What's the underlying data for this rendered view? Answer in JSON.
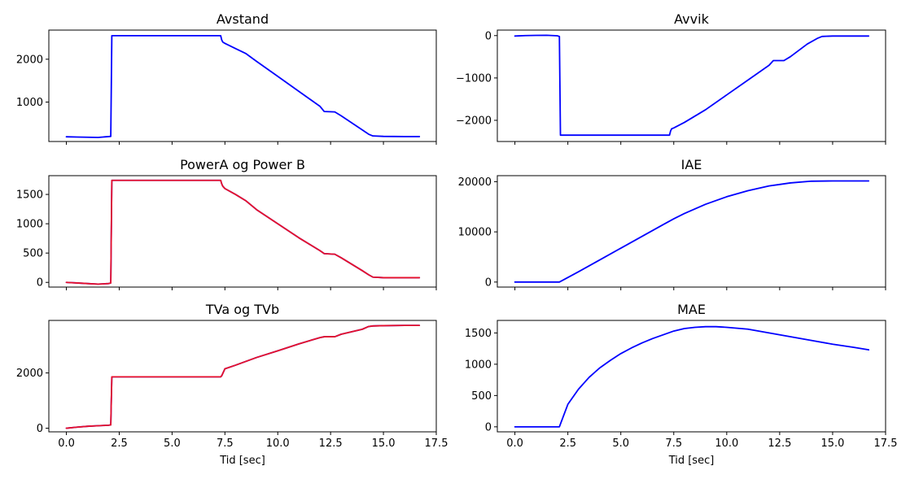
{
  "figure": {
    "title": "",
    "colors": {
      "blue": "#0000ff",
      "red": "#e8102a",
      "axes": "#000000"
    }
  },
  "chart_data": [
    {
      "type": "line",
      "title": "Avstand",
      "xlabel": "",
      "ylabel": "",
      "xlim": [
        -0.83,
        17.5
      ],
      "ylim": [
        80,
        2680
      ],
      "xticks": [
        0,
        2.5,
        5,
        7.5,
        10,
        12.5,
        15,
        17.5
      ],
      "xticklabels": [],
      "yticks": [
        1000,
        2000
      ],
      "yticklabels": [
        "1000",
        "2000"
      ],
      "grid": false,
      "series": [
        {
          "color": "#0000ff",
          "x": [
            0.0,
            0.5,
            1.0,
            1.5,
            2.0,
            2.1,
            2.15,
            2.2,
            3.0,
            5.0,
            7.0,
            7.3,
            7.35,
            7.4,
            7.5,
            8.0,
            8.5,
            9.0,
            10.0,
            11.0,
            12.0,
            12.2,
            12.7,
            13.0,
            14.0,
            14.3,
            14.5,
            15.0,
            16.0,
            16.7
          ],
          "y": [
            190,
            185,
            180,
            175,
            195,
            200,
            2550,
            2550,
            2550,
            2550,
            2550,
            2550,
            2450,
            2400,
            2370,
            2250,
            2130,
            1950,
            1600,
            1250,
            900,
            780,
            770,
            680,
            350,
            250,
            210,
            200,
            195,
            195
          ]
        }
      ]
    },
    {
      "type": "line",
      "title": "Avvik",
      "xlabel": "",
      "ylabel": "",
      "xlim": [
        -0.83,
        17.5
      ],
      "ylim": [
        -2500,
        130
      ],
      "xticks": [
        0,
        2.5,
        5,
        7.5,
        10,
        12.5,
        15,
        17.5
      ],
      "xticklabels": [],
      "yticks": [
        -2000,
        -1000,
        0
      ],
      "yticklabels": [
        "−2000",
        "−1000",
        "0"
      ],
      "grid": false,
      "series": [
        {
          "color": "#0000ff",
          "x": [
            0.0,
            0.5,
            1.0,
            1.5,
            2.0,
            2.1,
            2.15,
            2.2,
            4.0,
            6.0,
            7.3,
            7.35,
            7.4,
            7.5,
            8.0,
            9.0,
            10.0,
            11.0,
            12.0,
            12.2,
            12.7,
            13.0,
            13.8,
            14.3,
            14.5,
            15.0,
            16.0,
            16.7
          ],
          "y": [
            -10,
            0,
            5,
            8,
            -5,
            -20,
            -2350,
            -2350,
            -2350,
            -2350,
            -2350,
            -2250,
            -2200,
            -2180,
            -2050,
            -1750,
            -1400,
            -1050,
            -700,
            -590,
            -590,
            -500,
            -200,
            -60,
            -20,
            -10,
            -10,
            -10
          ]
        }
      ]
    },
    {
      "type": "line",
      "title": "PowerA og Power B",
      "xlabel": "",
      "ylabel": "",
      "xlim": [
        -0.83,
        17.5
      ],
      "ylim": [
        -80,
        1820
      ],
      "xticks": [
        0,
        2.5,
        5,
        7.5,
        10,
        12.5,
        15,
        17.5
      ],
      "xticklabels": [],
      "yticks": [
        0,
        500,
        1000,
        1500
      ],
      "yticklabels": [
        "0",
        "500",
        "1000",
        "1500"
      ],
      "grid": false,
      "series": [
        {
          "color": "#0000ff",
          "x": [
            0.0,
            0.5,
            1.0,
            1.5,
            2.0,
            2.1,
            2.15,
            2.2,
            4.0,
            6.0,
            7.3,
            7.35,
            7.4,
            7.5,
            8.0,
            8.5,
            9.0,
            10.0,
            11.0,
            12.0,
            12.2,
            12.7,
            13.0,
            14.0,
            14.3,
            14.5,
            15.0,
            16.0,
            16.7
          ],
          "y": [
            0,
            -10,
            -20,
            -30,
            -20,
            -10,
            1740,
            1740,
            1740,
            1740,
            1740,
            1680,
            1640,
            1600,
            1500,
            1390,
            1240,
            1000,
            760,
            540,
            490,
            480,
            420,
            200,
            130,
            90,
            80,
            80,
            80
          ]
        },
        {
          "color": "#e8102a",
          "x": [
            0.0,
            0.5,
            1.0,
            1.5,
            2.0,
            2.1,
            2.15,
            2.2,
            4.0,
            6.0,
            7.3,
            7.35,
            7.4,
            7.5,
            8.0,
            8.5,
            9.0,
            10.0,
            11.0,
            12.0,
            12.2,
            12.7,
            13.0,
            14.0,
            14.3,
            14.5,
            15.0,
            16.0,
            16.7
          ],
          "y": [
            0,
            -10,
            -20,
            -30,
            -20,
            -10,
            1740,
            1740,
            1740,
            1740,
            1740,
            1680,
            1640,
            1600,
            1500,
            1390,
            1240,
            1000,
            760,
            540,
            490,
            480,
            420,
            200,
            130,
            90,
            80,
            80,
            80
          ]
        }
      ]
    },
    {
      "type": "line",
      "title": "IAE",
      "xlabel": "",
      "ylabel": "",
      "xlim": [
        -0.83,
        17.5
      ],
      "ylim": [
        -1000,
        21200
      ],
      "xticks": [
        0,
        2.5,
        5,
        7.5,
        10,
        12.5,
        15,
        17.5
      ],
      "xticklabels": [],
      "yticks": [
        0,
        10000,
        20000
      ],
      "yticklabels": [
        "0",
        "10000",
        "20000"
      ],
      "grid": false,
      "series": [
        {
          "color": "#0000ff",
          "x": [
            0.0,
            2.1,
            3.0,
            4.0,
            5.0,
            6.0,
            7.0,
            7.5,
            8.0,
            9.0,
            10.0,
            11.0,
            12.0,
            12.5,
            13.0,
            14.0,
            15.0,
            16.0,
            16.7
          ],
          "y": [
            0,
            0,
            2050,
            4400,
            6750,
            9100,
            11450,
            12600,
            13650,
            15500,
            17000,
            18200,
            19150,
            19450,
            19750,
            20100,
            20150,
            20150,
            20150
          ]
        }
      ]
    },
    {
      "type": "line",
      "title": "TVa og TVb",
      "xlabel": "Tid [sec]",
      "ylabel": "",
      "xlim": [
        -0.83,
        17.5
      ],
      "ylim": [
        -130,
        3900
      ],
      "xticks": [
        0,
        2.5,
        5,
        7.5,
        10,
        12.5,
        15,
        17.5
      ],
      "xticklabels": [
        "0.0",
        "2.5",
        "5.0",
        "7.5",
        "10.0",
        "12.5",
        "15.0",
        "17.5"
      ],
      "yticks": [
        0,
        2000
      ],
      "yticklabels": [
        "0",
        "2000"
      ],
      "grid": false,
      "series": [
        {
          "color": "#0000ff",
          "x": [
            0.0,
            0.5,
            1.0,
            1.5,
            2.0,
            2.1,
            2.15,
            2.2,
            4.0,
            6.0,
            7.3,
            7.35,
            7.5,
            8.0,
            9.0,
            10.0,
            11.0,
            12.0,
            12.2,
            12.7,
            13.0,
            14.0,
            14.3,
            14.5,
            15.0,
            16.0,
            16.7
          ],
          "y": [
            0,
            40,
            70,
            90,
            110,
            120,
            1860,
            1860,
            1860,
            1860,
            1860,
            1900,
            2150,
            2280,
            2560,
            2800,
            3050,
            3280,
            3310,
            3310,
            3400,
            3580,
            3680,
            3700,
            3710,
            3720,
            3720
          ]
        },
        {
          "color": "#e8102a",
          "x": [
            0.0,
            0.5,
            1.0,
            1.5,
            2.0,
            2.1,
            2.15,
            2.2,
            4.0,
            6.0,
            7.3,
            7.35,
            7.5,
            8.0,
            9.0,
            10.0,
            11.0,
            12.0,
            12.2,
            12.7,
            13.0,
            14.0,
            14.3,
            14.5,
            15.0,
            16.0,
            16.7
          ],
          "y": [
            0,
            40,
            70,
            90,
            110,
            120,
            1860,
            1860,
            1860,
            1860,
            1860,
            1900,
            2150,
            2280,
            2560,
            2800,
            3050,
            3280,
            3310,
            3310,
            3400,
            3580,
            3680,
            3700,
            3710,
            3720,
            3720
          ]
        }
      ]
    },
    {
      "type": "line",
      "title": "MAE",
      "xlabel": "Tid [sec]",
      "ylabel": "",
      "xlim": [
        -0.83,
        17.5
      ],
      "ylim": [
        -80,
        1700
      ],
      "xticks": [
        0,
        2.5,
        5,
        7.5,
        10,
        12.5,
        15,
        17.5
      ],
      "xticklabels": [
        "0.0",
        "2.5",
        "5.0",
        "7.5",
        "10.0",
        "12.5",
        "15.0",
        "17.5"
      ],
      "yticks": [
        0,
        500,
        1000,
        1500
      ],
      "yticklabels": [
        "0",
        "500",
        "1000",
        "1500"
      ],
      "grid": false,
      "series": [
        {
          "color": "#0000ff",
          "x": [
            0.0,
            2.1,
            2.5,
            3.0,
            3.5,
            4.0,
            4.5,
            5.0,
            5.5,
            6.0,
            6.5,
            7.0,
            7.5,
            8.0,
            8.5,
            9.0,
            9.5,
            10.0,
            11.0,
            12.0,
            13.0,
            14.0,
            15.0,
            16.0,
            16.7
          ],
          "y": [
            0,
            0,
            360,
            600,
            790,
            940,
            1060,
            1170,
            1260,
            1340,
            1410,
            1470,
            1530,
            1570,
            1590,
            1600,
            1600,
            1590,
            1560,
            1500,
            1440,
            1380,
            1320,
            1270,
            1230
          ]
        }
      ]
    }
  ]
}
